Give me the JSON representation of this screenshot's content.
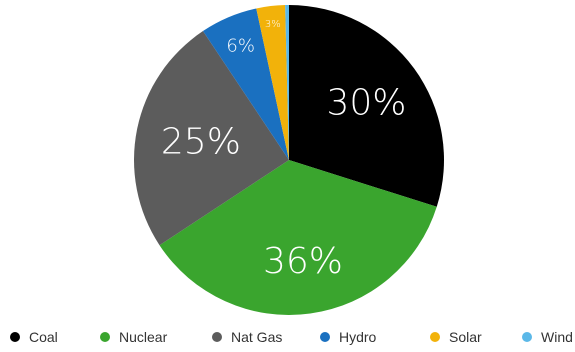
{
  "chart_data": {
    "type": "pie",
    "title": "",
    "categories": [
      "Coal",
      "Nuclear",
      "Nat Gas",
      "Hydro",
      "Solar",
      "Wind"
    ],
    "values": [
      30,
      36,
      25,
      6,
      3,
      0.4
    ],
    "labels": [
      "30%",
      "36%",
      "25%",
      "6%",
      "3%",
      ""
    ],
    "colors": [
      "#000000",
      "#3aa52e",
      "#5c5c5c",
      "#1a70c0",
      "#f2b20a",
      "#5bb8e8"
    ],
    "legend_position": "bottom"
  }
}
